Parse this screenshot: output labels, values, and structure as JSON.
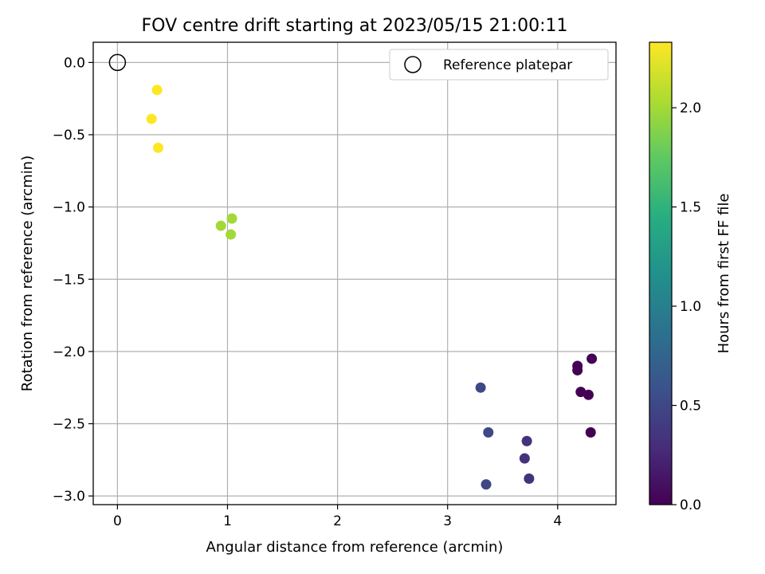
{
  "chart_data": {
    "type": "scatter",
    "title": "FOV centre drift starting at 2023/05/15 21:00:11",
    "xlabel": "Angular distance from reference (arcmin)",
    "ylabel": "Rotation from reference (arcmin)",
    "xlim": [
      -0.22,
      4.53
    ],
    "ylim": [
      -3.06,
      0.14
    ],
    "xticks": [
      0,
      1,
      2,
      3,
      4
    ],
    "yticks": [
      0.0,
      -0.5,
      -1.0,
      -1.5,
      -2.0,
      -2.5,
      -3.0
    ],
    "xtick_labels": [
      "0",
      "1",
      "2",
      "3",
      "4"
    ],
    "ytick_labels": [
      "0.0",
      "−0.5",
      "−1.0",
      "−1.5",
      "−2.0",
      "−2.5",
      "−3.0"
    ],
    "grid": true,
    "legend": {
      "placement": "top-right",
      "entries": [
        "Reference platepar"
      ]
    },
    "reference_point": {
      "name": "Reference platepar",
      "x": 0.0,
      "y": 0.0,
      "marker": "open-circle"
    },
    "colorbar": {
      "label": "Hours from first FF file",
      "range": [
        0.0,
        2.33
      ],
      "ticks": [
        0.0,
        0.5,
        1.0,
        1.5,
        2.0
      ],
      "tick_labels": [
        "0.0",
        "0.5",
        "1.0",
        "1.5",
        "2.0"
      ],
      "colormap": "viridis"
    },
    "points": [
      {
        "x": 0.36,
        "y": -0.19,
        "hours": 2.33
      },
      {
        "x": 0.31,
        "y": -0.39,
        "hours": 2.33
      },
      {
        "x": 0.37,
        "y": -0.59,
        "hours": 2.33
      },
      {
        "x": 1.04,
        "y": -1.08,
        "hours": 2.0
      },
      {
        "x": 0.94,
        "y": -1.13,
        "hours": 2.0
      },
      {
        "x": 1.03,
        "y": -1.19,
        "hours": 2.0
      },
      {
        "x": 4.31,
        "y": -2.05,
        "hours": 0.0
      },
      {
        "x": 4.18,
        "y": -2.1,
        "hours": 0.0
      },
      {
        "x": 4.18,
        "y": -2.13,
        "hours": 0.0
      },
      {
        "x": 4.21,
        "y": -2.28,
        "hours": 0.0
      },
      {
        "x": 4.28,
        "y": -2.3,
        "hours": 0.0
      },
      {
        "x": 4.3,
        "y": -2.56,
        "hours": 0.0
      },
      {
        "x": 3.3,
        "y": -2.25,
        "hours": 0.5
      },
      {
        "x": 3.37,
        "y": -2.56,
        "hours": 0.5
      },
      {
        "x": 3.35,
        "y": -2.92,
        "hours": 0.5
      },
      {
        "x": 3.72,
        "y": -2.62,
        "hours": 0.33
      },
      {
        "x": 3.7,
        "y": -2.74,
        "hours": 0.33
      },
      {
        "x": 3.74,
        "y": -2.88,
        "hours": 0.33
      }
    ]
  }
}
